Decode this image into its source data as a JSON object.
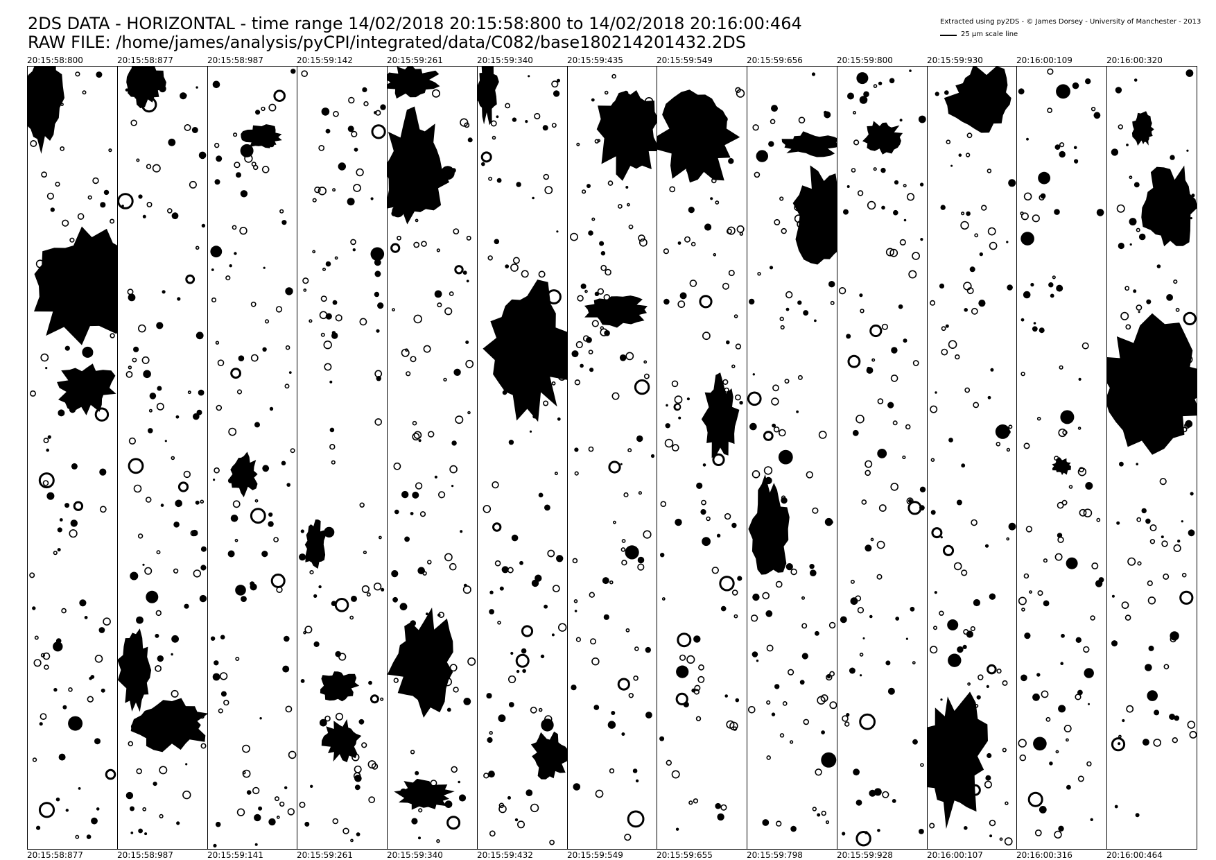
{
  "header": {
    "title_line1": "2DS DATA - HORIZONTAL - time range 14/02/2018 20:15:58:800 to 14/02/2018 20:16:00:464",
    "title_line2": "RAW FILE: /home/james/analysis/pyCPI/integrated/data/C082/base180214201432.2DS",
    "credit": "Extracted using py2DS - © James Dorsey - University of Manchester - 2013",
    "scale_label": "25 μm scale line"
  },
  "strips": [
    {
      "start": "20:15:58:800",
      "end": "20:15:58:877"
    },
    {
      "start": "20:15:58:877",
      "end": "20:15:58:987"
    },
    {
      "start": "20:15:58:987",
      "end": "20:15:59:141"
    },
    {
      "start": "20:15:59:142",
      "end": "20:15:59:261"
    },
    {
      "start": "20:15:59:261",
      "end": "20:15:59:340"
    },
    {
      "start": "20:15:59:340",
      "end": "20:15:59:432"
    },
    {
      "start": "20:15:59:435",
      "end": "20:15:59:549"
    },
    {
      "start": "20:15:59:549",
      "end": "20:15:59:655"
    },
    {
      "start": "20:15:59:656",
      "end": "20:15:59:798"
    },
    {
      "start": "20:15:59:800",
      "end": "20:15:59:928"
    },
    {
      "start": "20:15:59:930",
      "end": "20:16:00:107"
    },
    {
      "start": "20:16:00:109",
      "end": "20:16:00:316"
    },
    {
      "start": "20:16:00:320",
      "end": "20:16:00:464"
    }
  ],
  "colors": {
    "particle": "#000000",
    "background": "#ffffff",
    "frame": "#000000"
  }
}
